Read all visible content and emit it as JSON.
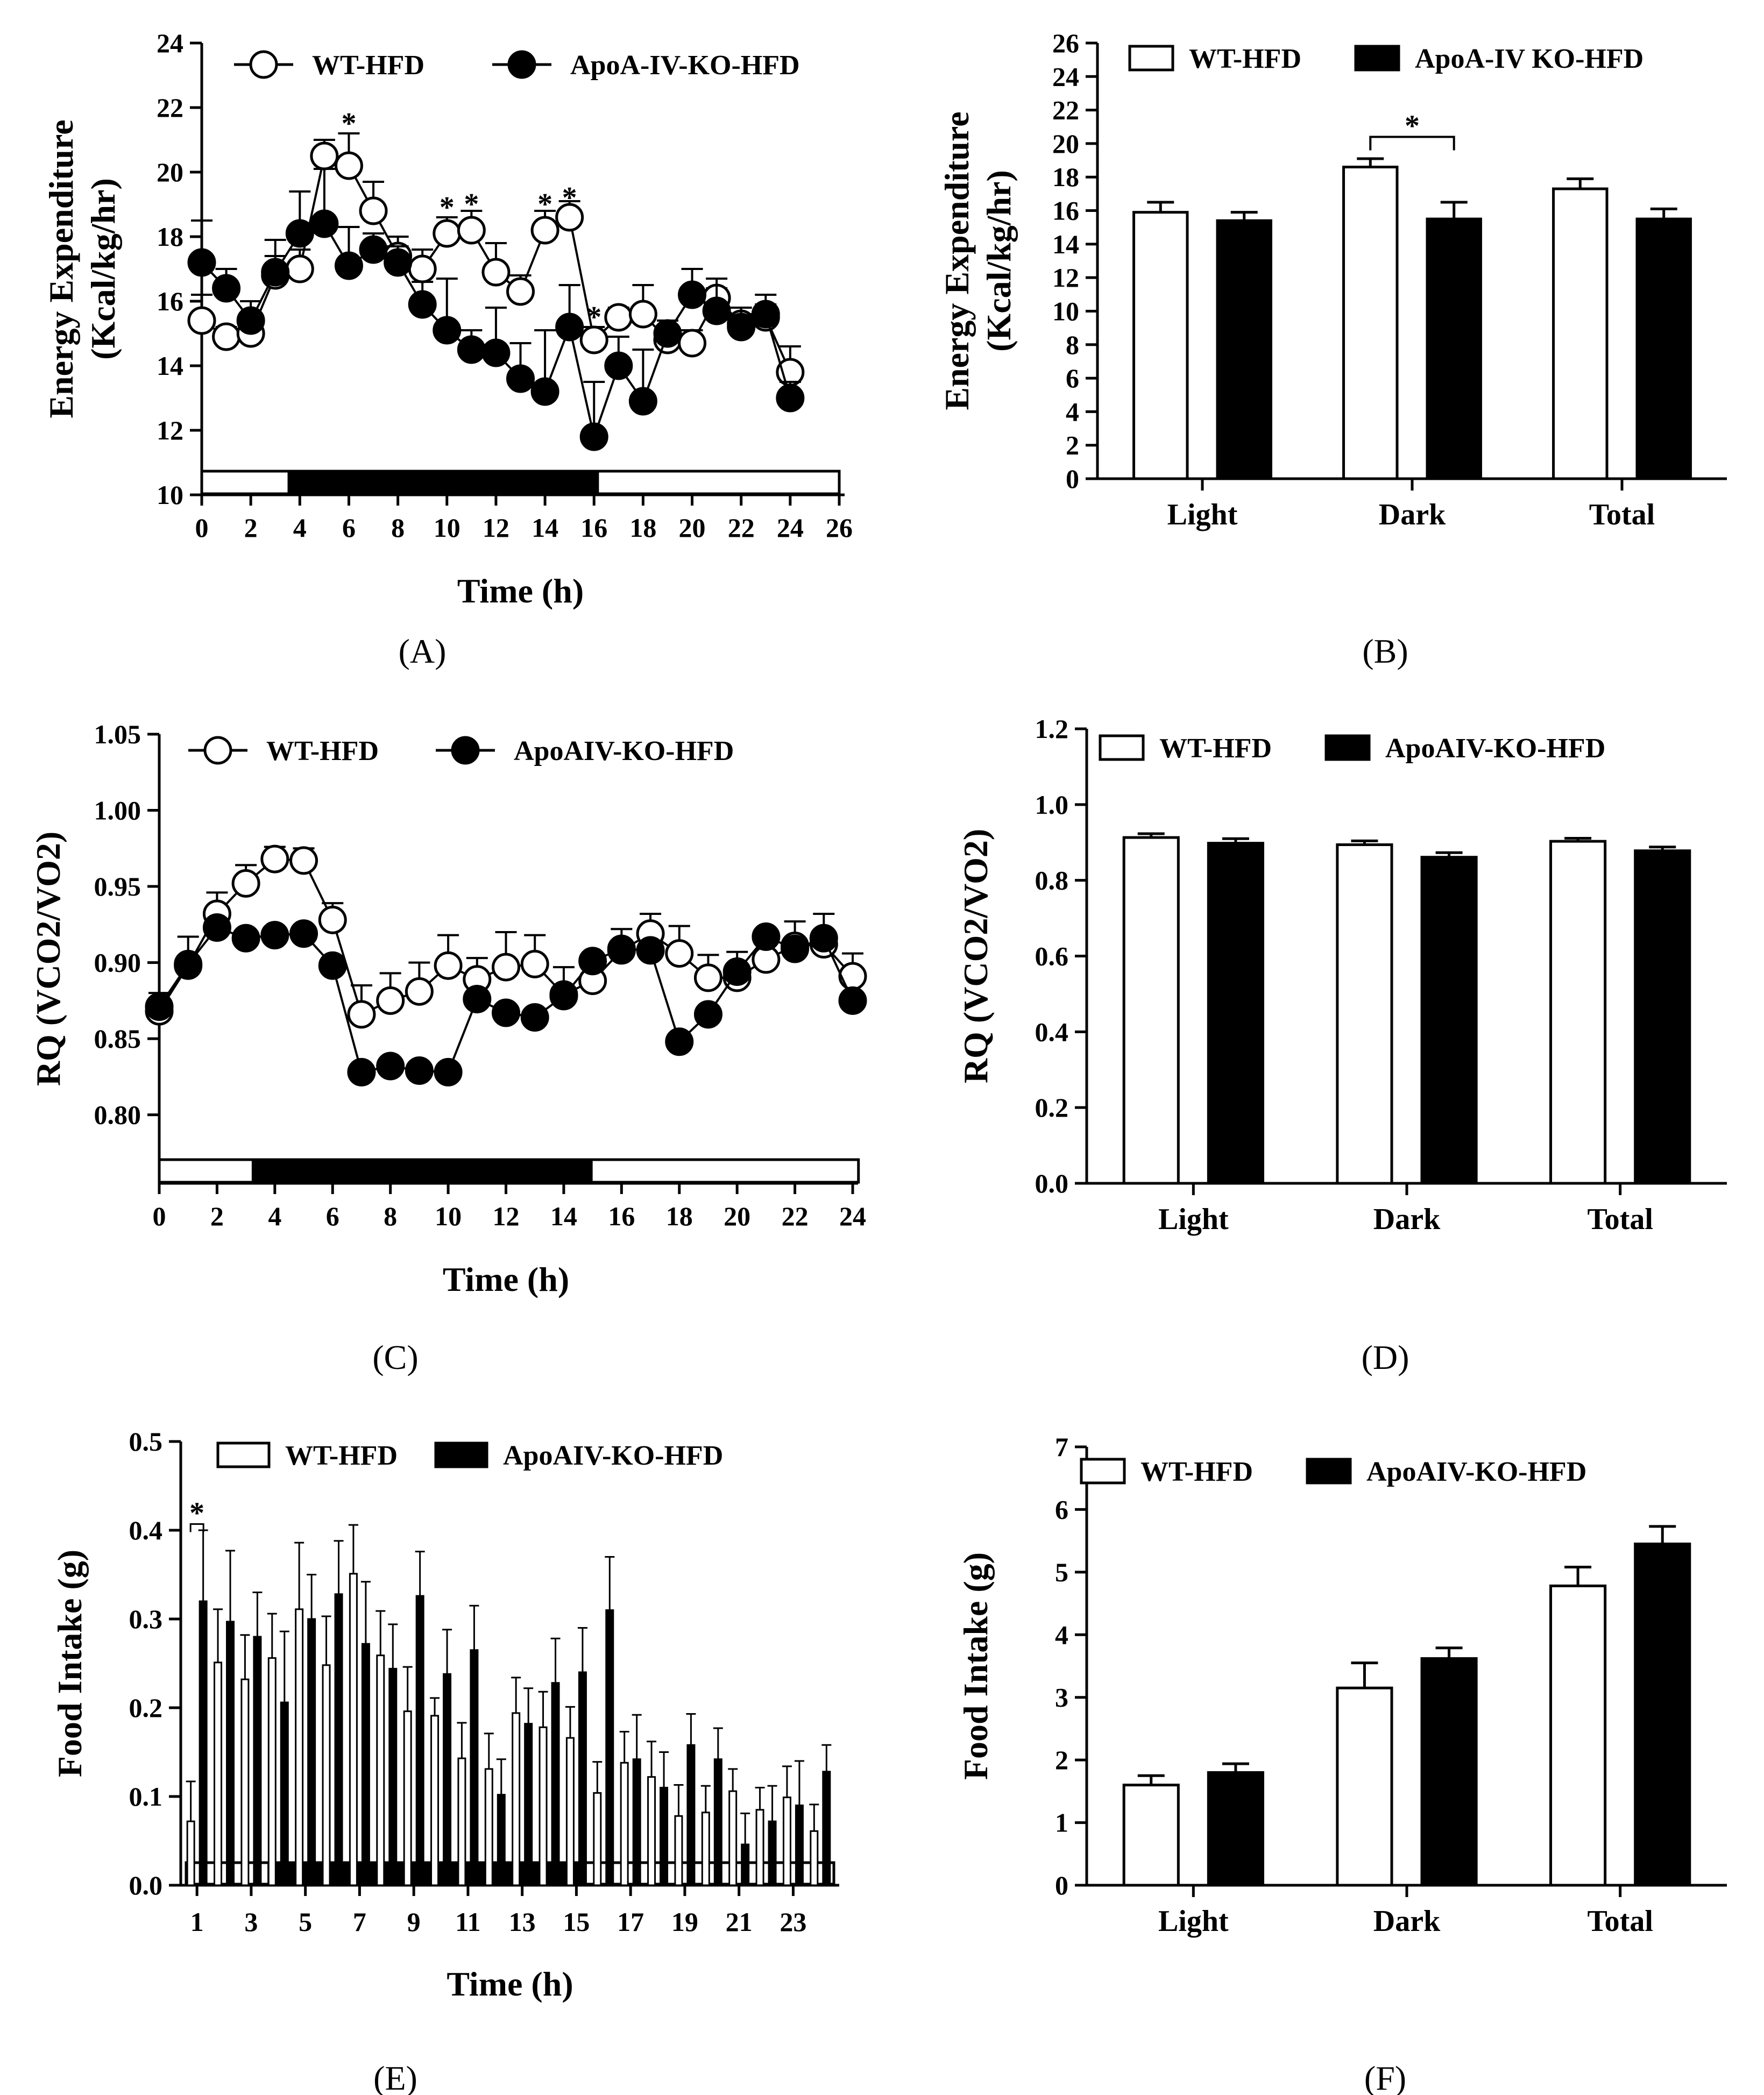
{
  "chart_data": [
    {
      "id": "A",
      "panel_label": "(A)",
      "type": "line",
      "xlabel": "Time (h)",
      "ylabel": [
        "Energy Expenditure",
        "(Kcal/kg/hr)"
      ],
      "xlim": [
        0,
        26
      ],
      "ylim": [
        10,
        24
      ],
      "xticks": [
        "0",
        "2",
        "4",
        "6",
        "8",
        "10",
        "12",
        "14",
        "16",
        "18",
        "20",
        "22",
        "24",
        "26"
      ],
      "yticks": [
        "10",
        "12",
        "14",
        "16",
        "18",
        "20",
        "22",
        "24"
      ],
      "legend": [
        "WT-HFD",
        "ApoA-IV-KO-HFD"
      ],
      "dark_period": [
        3.5,
        16.2
      ],
      "band_range": [
        0,
        26
      ],
      "series": [
        {
          "name": "WT-HFD",
          "marker": "open",
          "x": [
            0,
            1,
            2,
            3,
            4,
            5,
            6,
            7,
            8,
            9,
            10,
            11,
            12,
            13,
            14,
            15,
            16,
            17,
            18,
            19,
            20,
            21,
            22,
            23,
            24
          ],
          "values": [
            15.4,
            14.9,
            15.0,
            16.8,
            17.0,
            20.5,
            20.2,
            18.8,
            17.4,
            17.0,
            18.1,
            18.2,
            16.9,
            16.3,
            18.2,
            18.6,
            14.8,
            15.5,
            15.6,
            14.8,
            14.7,
            16.1,
            15.3,
            15.5,
            13.8
          ],
          "errors": [
            0.8,
            0.3,
            0.4,
            0.6,
            0.6,
            0.5,
            1.0,
            0.9,
            0.6,
            0.6,
            0.5,
            0.6,
            0.9,
            0.5,
            0.6,
            0.5,
            0.4,
            0.3,
            0.9,
            0.3,
            0.4,
            0.3,
            0.3,
            0.4,
            0.8
          ]
        },
        {
          "name": "ApoA-IV-KO-HFD",
          "marker": "filled",
          "x": [
            0,
            1,
            2,
            3,
            4,
            5,
            6,
            7,
            8,
            9,
            10,
            11,
            12,
            13,
            14,
            15,
            16,
            17,
            18,
            19,
            20,
            21,
            22,
            23,
            24
          ],
          "values": [
            17.2,
            16.4,
            15.4,
            16.9,
            18.1,
            18.4,
            17.1,
            17.6,
            17.2,
            15.9,
            15.1,
            14.5,
            14.4,
            13.6,
            13.2,
            15.2,
            11.8,
            14.0,
            12.9,
            15.0,
            16.2,
            15.7,
            15.2,
            15.6,
            13.0
          ],
          "errors": [
            1.3,
            0.6,
            0.6,
            1.0,
            1.3,
            1.7,
            1.2,
            0.5,
            0.5,
            0.7,
            1.6,
            0.6,
            1.4,
            1.1,
            1.9,
            1.3,
            1.7,
            0.9,
            1.6,
            0.4,
            0.8,
            1.0,
            0.6,
            0.6,
            0.5
          ]
        }
      ],
      "annotations": [
        {
          "text": "*",
          "x": 6,
          "y": 21.7
        },
        {
          "text": "*",
          "x": 10,
          "y": 19.1
        },
        {
          "text": "*",
          "x": 11,
          "y": 19.2
        },
        {
          "text": "*",
          "x": 14,
          "y": 19.2
        },
        {
          "text": "*",
          "x": 15,
          "y": 19.4
        },
        {
          "text": "*",
          "x": 16,
          "y": 15.7
        }
      ]
    },
    {
      "id": "B",
      "panel_label": "(B)",
      "type": "bar",
      "ylabel": [
        "Energy Expenditure",
        "(Kcal/kg/hr)"
      ],
      "categories": [
        "Light",
        "Dark",
        "Total"
      ],
      "ylim": [
        0,
        26
      ],
      "yticks": [
        "0",
        "2",
        "4",
        "6",
        "8",
        "10",
        "12",
        "14",
        "16",
        "18",
        "20",
        "22",
        "24",
        "26"
      ],
      "legend": [
        "WT-HFD",
        "ApoA-IV KO-HFD"
      ],
      "series": [
        {
          "name": "WT-HFD",
          "fill": "open",
          "values": [
            15.9,
            18.6,
            17.3
          ],
          "errors": [
            0.6,
            0.5,
            0.6
          ]
        },
        {
          "name": "ApoA-IV KO-HFD",
          "fill": "filled",
          "values": [
            15.4,
            15.5,
            15.5
          ],
          "errors": [
            0.5,
            1.0,
            0.6
          ]
        }
      ],
      "significance": {
        "category": "Dark",
        "text": "*",
        "y": 20.4
      }
    },
    {
      "id": "C",
      "panel_label": "(C)",
      "type": "line",
      "xlabel": "Time (h)",
      "ylabel": [
        "RQ (VCO2/VO2)"
      ],
      "xlim": [
        0,
        24
      ],
      "ylim": [
        0.755,
        1.05
      ],
      "xticks": [
        "0",
        "2",
        "4",
        "6",
        "8",
        "10",
        "12",
        "14",
        "16",
        "18",
        "20",
        "22",
        "24"
      ],
      "yticks": [
        "0.80",
        "0.85",
        "0.90",
        "0.95",
        "1.00",
        "1.05"
      ],
      "legend": [
        "WT-HFD",
        "ApoAIV-KO-HFD"
      ],
      "dark_period": [
        3.2,
        15.0
      ],
      "band_range": [
        0,
        24.2
      ],
      "series": [
        {
          "name": "WT-HFD",
          "marker": "open",
          "x": [
            0,
            1,
            2,
            3,
            4,
            5,
            6,
            7,
            8,
            9,
            10,
            11,
            12,
            13,
            14,
            15,
            16,
            17,
            18,
            19,
            20,
            21,
            22,
            23,
            24
          ],
          "values": [
            0.868,
            0.898,
            0.932,
            0.952,
            0.968,
            0.967,
            0.928,
            0.866,
            0.875,
            0.881,
            0.898,
            0.889,
            0.897,
            0.899,
            0.879,
            0.888,
            0.908,
            0.919,
            0.906,
            0.89,
            0.89,
            0.902,
            0.911,
            0.912,
            0.891
          ],
          "errors": [
            0.012,
            0.019,
            0.014,
            0.012,
            0.008,
            0.008,
            0.011,
            0.019,
            0.018,
            0.019,
            0.02,
            0.014,
            0.023,
            0.019,
            0.018,
            0.017,
            0.014,
            0.013,
            0.018,
            0.015,
            0.017,
            0.017,
            0.016,
            0.02,
            0.015
          ]
        },
        {
          "name": "ApoAIV-KO-HFD",
          "marker": "filled",
          "x": [
            0,
            1,
            2,
            3,
            4,
            5,
            6,
            7,
            8,
            9,
            10,
            11,
            12,
            13,
            14,
            15,
            16,
            17,
            18,
            19,
            20,
            21,
            22,
            23,
            24
          ],
          "values": [
            0.871,
            0.899,
            0.923,
            0.916,
            0.918,
            0.919,
            0.898,
            0.828,
            0.832,
            0.829,
            0.828,
            0.876,
            0.867,
            0.864,
            0.878,
            0.901,
            0.909,
            0.908,
            0.848,
            0.866,
            0.894,
            0.917,
            0.909,
            0.916,
            0.875
          ]
        }
      ]
    },
    {
      "id": "D",
      "panel_label": "(D)",
      "type": "bar",
      "ylabel": [
        "RQ (VCO2/VO2)"
      ],
      "categories": [
        "Light",
        "Dark",
        "Total"
      ],
      "ylim": [
        0,
        1.2
      ],
      "yticks": [
        "0.0",
        "0.2",
        "0.4",
        "0.6",
        "0.8",
        "1.0",
        "1.2"
      ],
      "legend": [
        "WT-HFD",
        "ApoAIV-KO-HFD"
      ],
      "series": [
        {
          "name": "WT-HFD",
          "fill": "open",
          "values": [
            0.913,
            0.894,
            0.903
          ],
          "errors": [
            0.01,
            0.01,
            0.008
          ]
        },
        {
          "name": "ApoAIV-KO-HFD",
          "fill": "filled",
          "values": [
            0.898,
            0.861,
            0.878
          ],
          "errors": [
            0.012,
            0.012,
            0.01
          ]
        }
      ]
    },
    {
      "id": "E",
      "panel_label": "(E)",
      "type": "bar",
      "xlabel": "Time (h)",
      "ylabel": [
        "Food Intake (g)"
      ],
      "hours": [
        1,
        2,
        3,
        4,
        5,
        6,
        7,
        8,
        9,
        10,
        11,
        12,
        13,
        14,
        15,
        16,
        17,
        18,
        19,
        20,
        21,
        22,
        23,
        24
      ],
      "xticks": [
        "1",
        "3",
        "5",
        "7",
        "9",
        "11",
        "13",
        "15",
        "17",
        "19",
        "21",
        "23"
      ],
      "ylim": [
        0,
        0.5
      ],
      "yticks": [
        "0.0",
        "0.1",
        "0.2",
        "0.3",
        "0.4",
        "0.5"
      ],
      "legend": [
        "WT-HFD",
        "ApoAIV-KO-HFD"
      ],
      "dark_period": [
        3.6,
        15.3
      ],
      "band_range": [
        0.6,
        24.5
      ],
      "series": [
        {
          "name": "WT-HFD",
          "fill": "open",
          "values": [
            0.072,
            0.251,
            0.232,
            0.256,
            0.311,
            0.248,
            0.351,
            0.259,
            0.196,
            0.191,
            0.143,
            0.131,
            0.194,
            0.178,
            0.166,
            0.104,
            0.138,
            0.122,
            0.078,
            0.082,
            0.106,
            0.085,
            0.099,
            0.061
          ],
          "errors": [
            0.045,
            0.06,
            0.05,
            0.05,
            0.075,
            0.055,
            0.055,
            0.05,
            0.05,
            0.02,
            0.04,
            0.04,
            0.04,
            0.04,
            0.035,
            0.035,
            0.035,
            0.04,
            0.035,
            0.03,
            0.025,
            0.025,
            0.035,
            0.03
          ]
        },
        {
          "name": "ApoAIV-KO-HFD",
          "fill": "filled",
          "values": [
            0.32,
            0.297,
            0.28,
            0.206,
            0.3,
            0.328,
            0.272,
            0.244,
            0.326,
            0.238,
            0.265,
            0.102,
            0.182,
            0.228,
            0.24,
            0.31,
            0.142,
            0.11,
            0.158,
            0.142,
            0.046,
            0.072,
            0.09,
            0.128
          ],
          "errors": [
            0.08,
            0.08,
            0.05,
            0.08,
            0.05,
            0.06,
            0.07,
            0.05,
            0.05,
            0.05,
            0.05,
            0.04,
            0.04,
            0.05,
            0.05,
            0.06,
            0.05,
            0.04,
            0.035,
            0.035,
            0.035,
            0.04,
            0.05,
            0.03
          ]
        }
      ],
      "significance": {
        "hour": 1,
        "text": "*"
      }
    },
    {
      "id": "F",
      "panel_label": "(F)",
      "type": "bar",
      "ylabel": [
        "Food Intake (g)"
      ],
      "categories": [
        "Light",
        "Dark",
        "Total"
      ],
      "ylim": [
        0,
        7
      ],
      "yticks": [
        "0",
        "1",
        "2",
        "3",
        "4",
        "5",
        "6",
        "7"
      ],
      "legend": [
        "WT-HFD",
        "ApoAIV-KO-HFD"
      ],
      "series": [
        {
          "name": "WT-HFD",
          "fill": "open",
          "values": [
            1.6,
            3.15,
            4.78
          ],
          "errors": [
            0.15,
            0.4,
            0.3
          ]
        },
        {
          "name": "ApoAIV-KO-HFD",
          "fill": "filled",
          "values": [
            1.8,
            3.62,
            5.45
          ],
          "errors": [
            0.14,
            0.17,
            0.28
          ]
        }
      ]
    }
  ]
}
